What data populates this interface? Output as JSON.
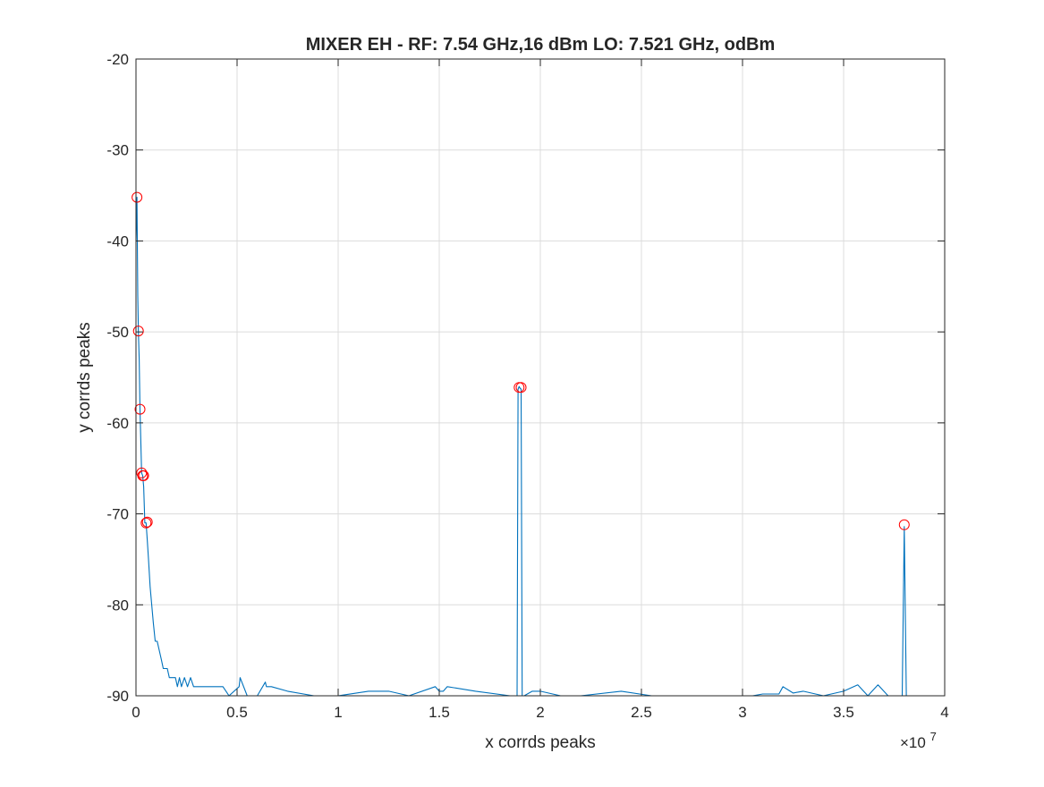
{
  "chart_data": {
    "type": "line",
    "title": "MIXER EH - RF: 7.54 GHz,16 dBm LO: 7.521 GHz, odBm",
    "xlabel": "x corrds peaks",
    "ylabel": "y corrds peaks",
    "x_exponent_label": "×10",
    "x_exponent_power": "7",
    "xlim": [
      0,
      40000000
    ],
    "ylim": [
      -90,
      -20
    ],
    "xticks": [
      0,
      5000000,
      10000000,
      15000000,
      20000000,
      25000000,
      30000000,
      35000000,
      40000000
    ],
    "xtick_labels": [
      "0",
      "0.5",
      "1",
      "1.5",
      "2",
      "2.5",
      "3",
      "3.5",
      "4"
    ],
    "yticks": [
      -90,
      -80,
      -70,
      -60,
      -50,
      -40,
      -30,
      -20
    ],
    "ytick_labels": [
      "-90",
      "-80",
      "-70",
      "-60",
      "-50",
      "-40",
      "-30",
      "-20"
    ],
    "grid": true,
    "series": [
      {
        "style": "line",
        "color": "#0072BD",
        "x": [
          0,
          50000,
          90000,
          120000,
          160000,
          200000,
          240000,
          280000,
          330000,
          380000,
          440000,
          500000,
          560000,
          620000,
          700000,
          780000,
          860000,
          950000,
          1050000,
          1150000,
          1250000,
          1350000,
          1450000,
          1550000,
          1650000,
          1750000,
          1850000,
          1950000,
          2050000,
          2150000,
          2250000,
          2400000,
          2550000,
          2700000,
          2850000,
          3000000,
          3150000,
          3300000,
          3450000,
          3600000,
          3750000,
          4000000,
          4300000,
          4600000,
          5100000,
          5150000,
          5500000,
          6000000,
          6400000,
          6450000,
          6700000,
          7500000,
          8800000,
          10000000,
          11500000,
          12000000,
          12500000,
          13500000,
          14800000,
          15000000,
          15200000,
          15400000,
          16800000,
          18500000,
          18850000,
          18900000,
          18950000,
          19000000,
          19050000,
          19100000,
          19200000,
          19600000,
          20000000,
          21000000,
          22000000,
          24000000,
          25500000,
          27000000,
          29000000,
          30500000,
          31000000,
          31800000,
          32000000,
          32500000,
          33000000,
          34000000,
          35000000,
          35700000,
          36200000,
          36700000,
          37200000,
          37500000,
          37800000,
          37900000,
          38000000,
          38100000,
          38300000,
          39000000,
          40000000
        ],
        "y": [
          -40,
          -35.2,
          -46,
          -50,
          -53,
          -58.6,
          -62,
          -65.5,
          -65.8,
          -67,
          -71,
          -71,
          -73,
          -75,
          -78,
          -80,
          -82,
          -84,
          -84,
          -85,
          -86,
          -87,
          -87,
          -87,
          -88,
          -88,
          -88,
          -88,
          -89,
          -88,
          -89,
          -88,
          -89,
          -88,
          -89,
          -89,
          -89,
          -89,
          -89,
          -89,
          -89,
          -89,
          -89,
          -90,
          -89,
          -88,
          -90,
          -90,
          -88.5,
          -89,
          -89,
          -89.5,
          -90,
          -90,
          -89.5,
          -89.5,
          -89.5,
          -90,
          -89,
          -89.5,
          -89.5,
          -89,
          -89.5,
          -90,
          -90,
          -56.3,
          -56,
          -56.2,
          -56.3,
          -90,
          -90,
          -89.5,
          -89.5,
          -90,
          -90,
          -89.5,
          -90,
          -90,
          -90,
          -90,
          -89.8,
          -89.8,
          -89,
          -89.7,
          -89.5,
          -90,
          -89.5,
          -88.8,
          -90,
          -88.8,
          -90,
          -90,
          -90,
          -90,
          -71.4,
          -90,
          -90,
          -90,
          -90
        ]
      },
      {
        "style": "markers",
        "marker": "circle",
        "color": "#FF0000",
        "x": [
          50000,
          120000,
          200000,
          280000,
          330000,
          380000,
          500000,
          560000,
          18950000,
          19050000,
          38000000
        ],
        "y": [
          -35.2,
          -49.9,
          -58.5,
          -65.5,
          -65.8,
          -65.8,
          -71,
          -70.9,
          -56.1,
          -56.1,
          -71.2
        ]
      }
    ]
  }
}
